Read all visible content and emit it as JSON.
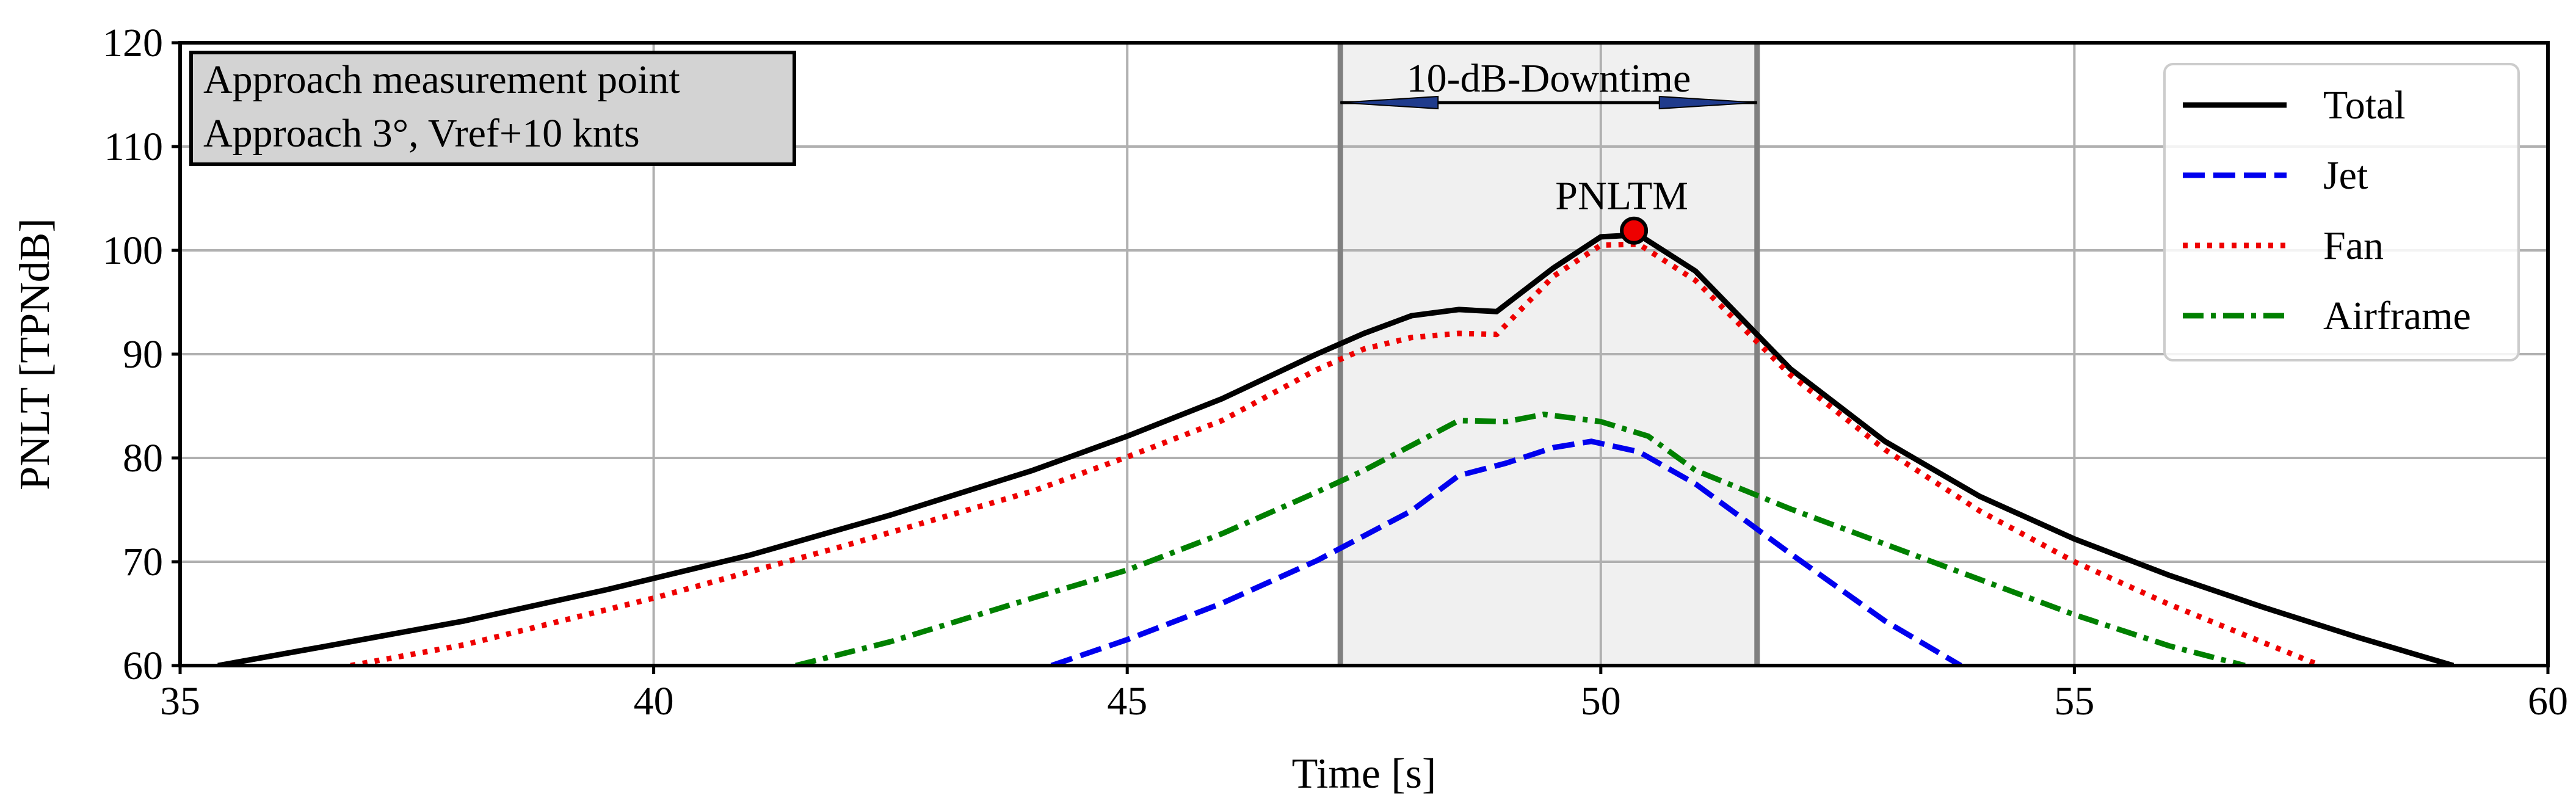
{
  "chart_data": {
    "type": "line",
    "title": "",
    "xlabel": "Time [s]",
    "ylabel": "PNLT [TPNdB]",
    "xlim": [
      35,
      60
    ],
    "ylim": [
      60,
      120
    ],
    "xticks": [
      35,
      40,
      45,
      50,
      55,
      60
    ],
    "yticks": [
      60,
      70,
      80,
      90,
      100,
      110,
      120
    ],
    "grid": true,
    "legend_position": "upper right",
    "info_box": {
      "line1": "Approach measurement point",
      "line2": "Approach 3°, Vref+10 knts"
    },
    "downtime": {
      "label": "10-dB-Downtime",
      "start": 47.25,
      "end": 51.65
    },
    "peak": {
      "label": "PNLTM",
      "x": 50.35,
      "y": 101.9
    },
    "series": [
      {
        "name": "Total",
        "color": "#000000",
        "dash": "solid",
        "x": [
          35.4,
          36.5,
          38,
          39.5,
          41,
          42.5,
          44,
          45,
          46,
          47,
          47.5,
          48,
          48.5,
          48.9,
          49.5,
          50,
          50.4,
          51,
          51.5,
          52,
          53,
          54,
          55,
          56,
          57,
          58,
          59
        ],
        "y": [
          60,
          61.8,
          64.3,
          67.3,
          70.6,
          74.5,
          78.8,
          82.1,
          85.7,
          90,
          92,
          93.7,
          94.3,
          94.1,
          98.3,
          101.3,
          101.5,
          98,
          93.3,
          88.6,
          81.6,
          76.3,
          72.2,
          68.7,
          65.6,
          62.7,
          60
        ]
      },
      {
        "name": "Jet",
        "color": "#0000ee",
        "dash": "dashed",
        "x": [
          44.2,
          45,
          46,
          47,
          48,
          48.5,
          49,
          49.5,
          49.9,
          50.4,
          51,
          52,
          53,
          53.8
        ],
        "y": [
          60,
          62.5,
          66,
          70.1,
          74.9,
          78.3,
          79.5,
          81,
          81.6,
          80.6,
          77.5,
          70.8,
          64.3,
          60
        ]
      },
      {
        "name": "Fan",
        "color": "#ee0000",
        "dash": "dotted",
        "x": [
          36.8,
          38,
          40,
          42,
          44,
          45,
          46,
          47,
          47.5,
          48,
          48.5,
          48.9,
          49.5,
          50,
          50.4,
          51,
          52,
          53,
          54,
          55,
          56,
          57,
          57.6
        ],
        "y": [
          60,
          62,
          66.5,
          71.5,
          76.8,
          80.1,
          83.6,
          88.5,
          90.5,
          91.6,
          92,
          91.9,
          97.5,
          100.5,
          100.6,
          97.1,
          88,
          80.8,
          74.9,
          70,
          65.9,
          62.2,
          60
        ]
      },
      {
        "name": "Airframe",
        "color": "#008000",
        "dash": "dashdot",
        "x": [
          41.5,
          42.5,
          44,
          45,
          46,
          47,
          47.5,
          48,
          48.5,
          49,
          49.4,
          50,
          50.5,
          51,
          52,
          53,
          54,
          55,
          56,
          56.8
        ],
        "y": [
          60,
          62.3,
          66.5,
          69.2,
          72.7,
          76.7,
          78.8,
          81.2,
          83.6,
          83.5,
          84.2,
          83.5,
          82.1,
          78.8,
          75.1,
          71.7,
          68.3,
          64.9,
          61.9,
          60
        ]
      }
    ]
  }
}
